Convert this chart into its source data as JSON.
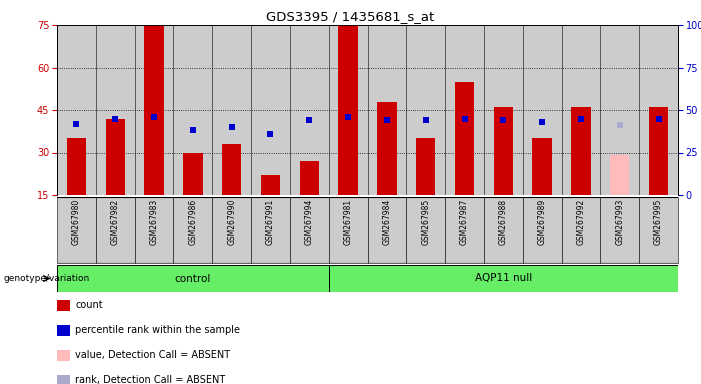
{
  "title": "GDS3395 / 1435681_s_at",
  "samples": [
    "GSM267980",
    "GSM267982",
    "GSM267983",
    "GSM267986",
    "GSM267990",
    "GSM267991",
    "GSM267994",
    "GSM267981",
    "GSM267984",
    "GSM267985",
    "GSM267987",
    "GSM267988",
    "GSM267989",
    "GSM267992",
    "GSM267993",
    "GSM267995"
  ],
  "count_values": [
    35,
    42,
    75,
    30,
    33,
    22,
    27,
    75,
    48,
    35,
    55,
    46,
    35,
    46,
    29,
    46
  ],
  "rank_values": [
    42,
    45,
    46,
    38,
    40,
    36,
    44,
    46,
    44,
    44,
    45,
    44,
    43,
    45,
    41,
    45
  ],
  "absent_count": [
    null,
    null,
    null,
    null,
    null,
    null,
    null,
    null,
    null,
    null,
    null,
    null,
    null,
    null,
    29,
    null
  ],
  "absent_rank": [
    null,
    null,
    null,
    null,
    null,
    null,
    null,
    null,
    null,
    null,
    null,
    null,
    null,
    null,
    41,
    null
  ],
  "groups": [
    {
      "label": "control",
      "start": 0,
      "end": 7
    },
    {
      "label": "AQP11 null",
      "start": 7,
      "end": 16
    }
  ],
  "ylim_left": [
    15,
    75
  ],
  "ylim_right": [
    0,
    100
  ],
  "yticks_left": [
    15,
    30,
    45,
    60,
    75
  ],
  "yticks_right": [
    0,
    25,
    50,
    75,
    100
  ],
  "bar_color": "#cc0000",
  "rank_color": "#0000cc",
  "absent_bar_color": "#ffbbbb",
  "absent_rank_color": "#aaaacc",
  "background_color": "#cccccc",
  "group_color": "#66ee66",
  "legend_items": [
    {
      "label": "count",
      "color": "#cc0000"
    },
    {
      "label": "percentile rank within the sample",
      "color": "#0000cc"
    },
    {
      "label": "value, Detection Call = ABSENT",
      "color": "#ffbbbb"
    },
    {
      "label": "rank, Detection Call = ABSENT",
      "color": "#aaaacc"
    }
  ]
}
